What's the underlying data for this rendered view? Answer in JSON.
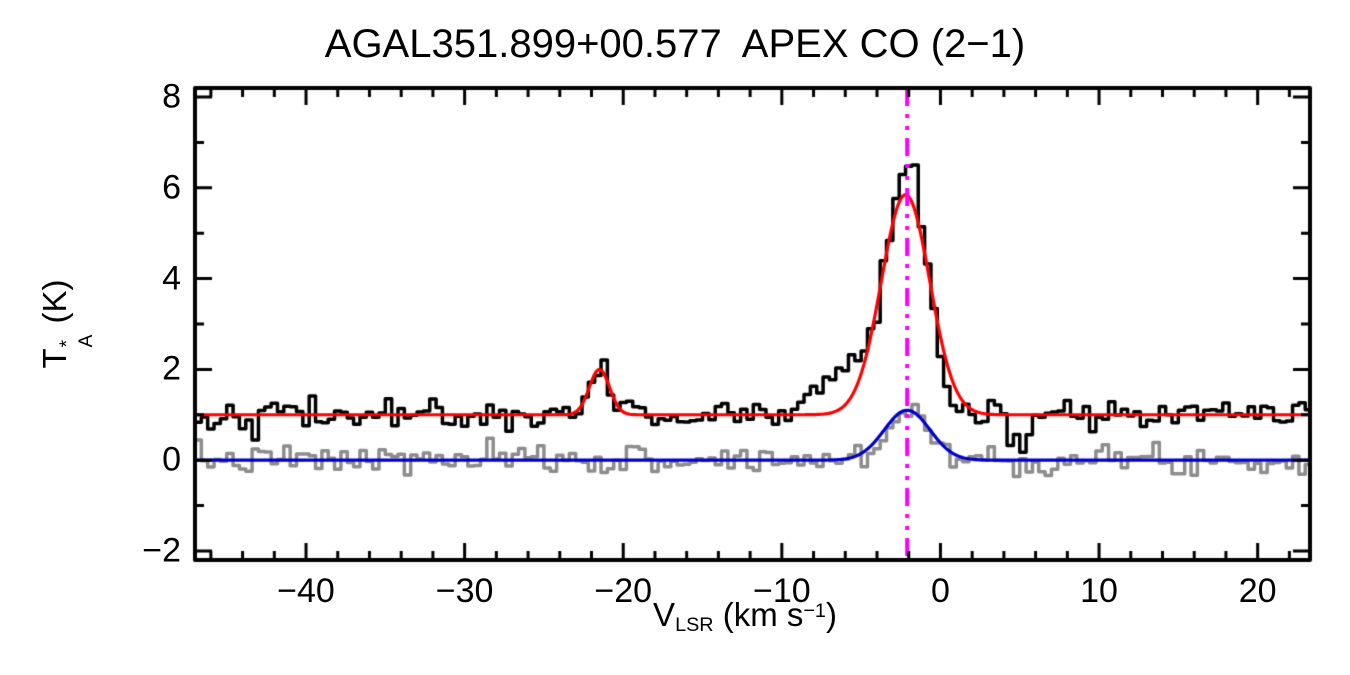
{
  "figure": {
    "background": "#ffffff",
    "text_color": "#000000"
  },
  "chart_data": {
    "type": "line",
    "title": "AGAL351.899+00.577  APEX CO (2−1)",
    "xlabel": {
      "prefix": "V",
      "sub": "LSR",
      "mid": " (km s",
      "sup": "−1",
      "suffix": ")"
    },
    "ylabel": {
      "prefix": "T",
      "sup": "*",
      "sub": "A",
      "suffix": " (K)"
    },
    "x_unit": "km/s",
    "y_unit": "K",
    "xlim": [
      -47,
      23.3
    ],
    "ylim": [
      -2.2,
      8.2
    ],
    "xticks": [
      -40,
      -30,
      -20,
      -10,
      0,
      10,
      20
    ],
    "yticks": [
      -2,
      0,
      2,
      4,
      6,
      8
    ],
    "x_minor_step": 2,
    "y_minor_step": 1,
    "grid": false,
    "legend": "none",
    "axis_color": "#000000",
    "channel_width": 0.4,
    "vline": {
      "x": -2.1,
      "color": "#ff00ff",
      "style": "dash-dot-dot",
      "name": "systemic-velocity-marker"
    },
    "series": [
      {
        "name": "observed CO (2-1) spectrum",
        "color": "#000000",
        "line_width": 3.5,
        "baseline": 1.0,
        "noise_rms": 0.17,
        "peak_value_K": 6.7,
        "components": [
          {
            "center": -2.0,
            "peak": 5.3,
            "fwhm": 2.9
          },
          {
            "center": -5.4,
            "peak": 1.1,
            "fwhm": 4.5
          },
          {
            "center": -21.5,
            "peak": 1.05,
            "fwhm": 1.3
          },
          {
            "center": 4.9,
            "peak": -0.6,
            "fwhm": 1.6
          }
        ]
      },
      {
        "name": "observed offset spectrum",
        "color": "#8d8d8d",
        "line_width": 3.5,
        "baseline": 0.0,
        "noise_rms": 0.16,
        "peak_value_K": 1.35,
        "components": [
          {
            "center": -2.0,
            "peak": 1.15,
            "fwhm": 3.0
          }
        ]
      }
    ],
    "fits": [
      {
        "name": "gaussian fit main spectrum",
        "color": "#ff0000",
        "line_width": 3.2,
        "baseline": 1.0,
        "peak_value_K": 5.85,
        "components": [
          {
            "center": -2.2,
            "peak": 4.85,
            "fwhm": 3.6
          },
          {
            "center": -21.5,
            "peak": 1.0,
            "fwhm": 1.5
          }
        ]
      },
      {
        "name": "gaussian fit offset spectrum",
        "color": "#0000cc",
        "line_width": 3.2,
        "baseline": 0.0,
        "peak_value_K": 1.1,
        "components": [
          {
            "center": -2.1,
            "peak": 1.1,
            "fwhm": 3.4
          }
        ]
      }
    ]
  }
}
